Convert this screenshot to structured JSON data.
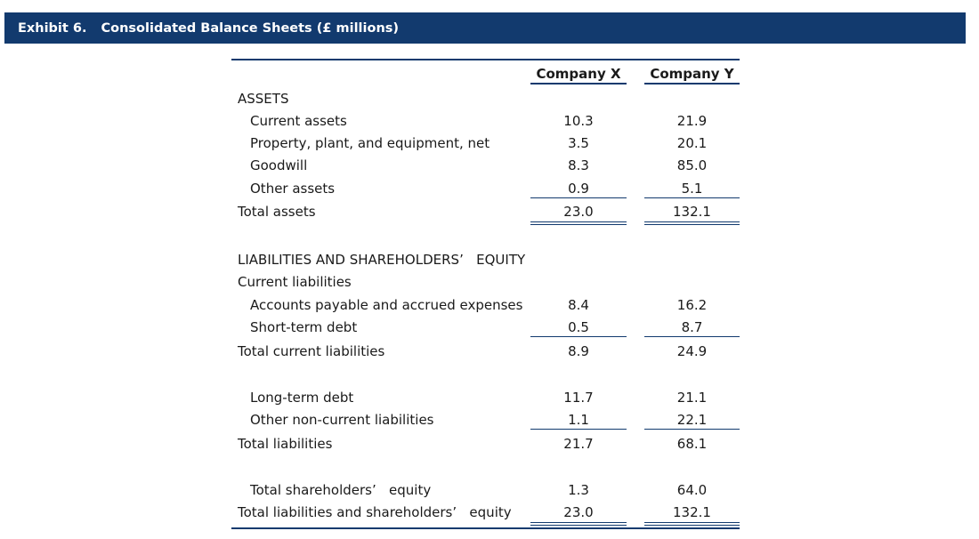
{
  "exhibit": {
    "number": "Exhibit 6.",
    "title": "Consolidated Balance Sheets (£ millions)"
  },
  "columns": {
    "company_x": "Company X",
    "company_y": "Company Y"
  },
  "rows": [
    {
      "label": "ASSETS",
      "x": "",
      "y": ""
    },
    {
      "label": "Current assets",
      "x": "10.3",
      "y": "21.9"
    },
    {
      "label": "Property, plant, and equipment, net",
      "x": "3.5",
      "y": "20.1"
    },
    {
      "label": "Goodwill",
      "x": "8.3",
      "y": "85.0"
    },
    {
      "label": "Other assets",
      "x": "0.9",
      "y": "5.1"
    },
    {
      "label": "Total assets",
      "x": "23.0",
      "y": "132.1"
    },
    {
      "label": "LIABILITIES AND SHAREHOLDERS’   EQUITY",
      "x": "",
      "y": ""
    },
    {
      "label": "Current liabilities",
      "x": "",
      "y": ""
    },
    {
      "label": "Accounts payable and accrued expenses",
      "x": "8.4",
      "y": "16.2"
    },
    {
      "label": "Short-term debt",
      "x": "0.5",
      "y": "8.7"
    },
    {
      "label": "Total current liabilities",
      "x": "8.9",
      "y": "24.9"
    },
    {
      "label": "Long-term debt",
      "x": "11.7",
      "y": "21.1"
    },
    {
      "label": "Other non-current liabilities",
      "x": "1.1",
      "y": "22.1"
    },
    {
      "label": "Total liabilities",
      "x": "21.7",
      "y": "68.1"
    },
    {
      "label": "Total shareholders’   equity",
      "x": "1.3",
      "y": "64.0"
    },
    {
      "label": "Total liabilities and shareholders’   equity",
      "x": "23.0",
      "y": "132.1"
    }
  ]
}
